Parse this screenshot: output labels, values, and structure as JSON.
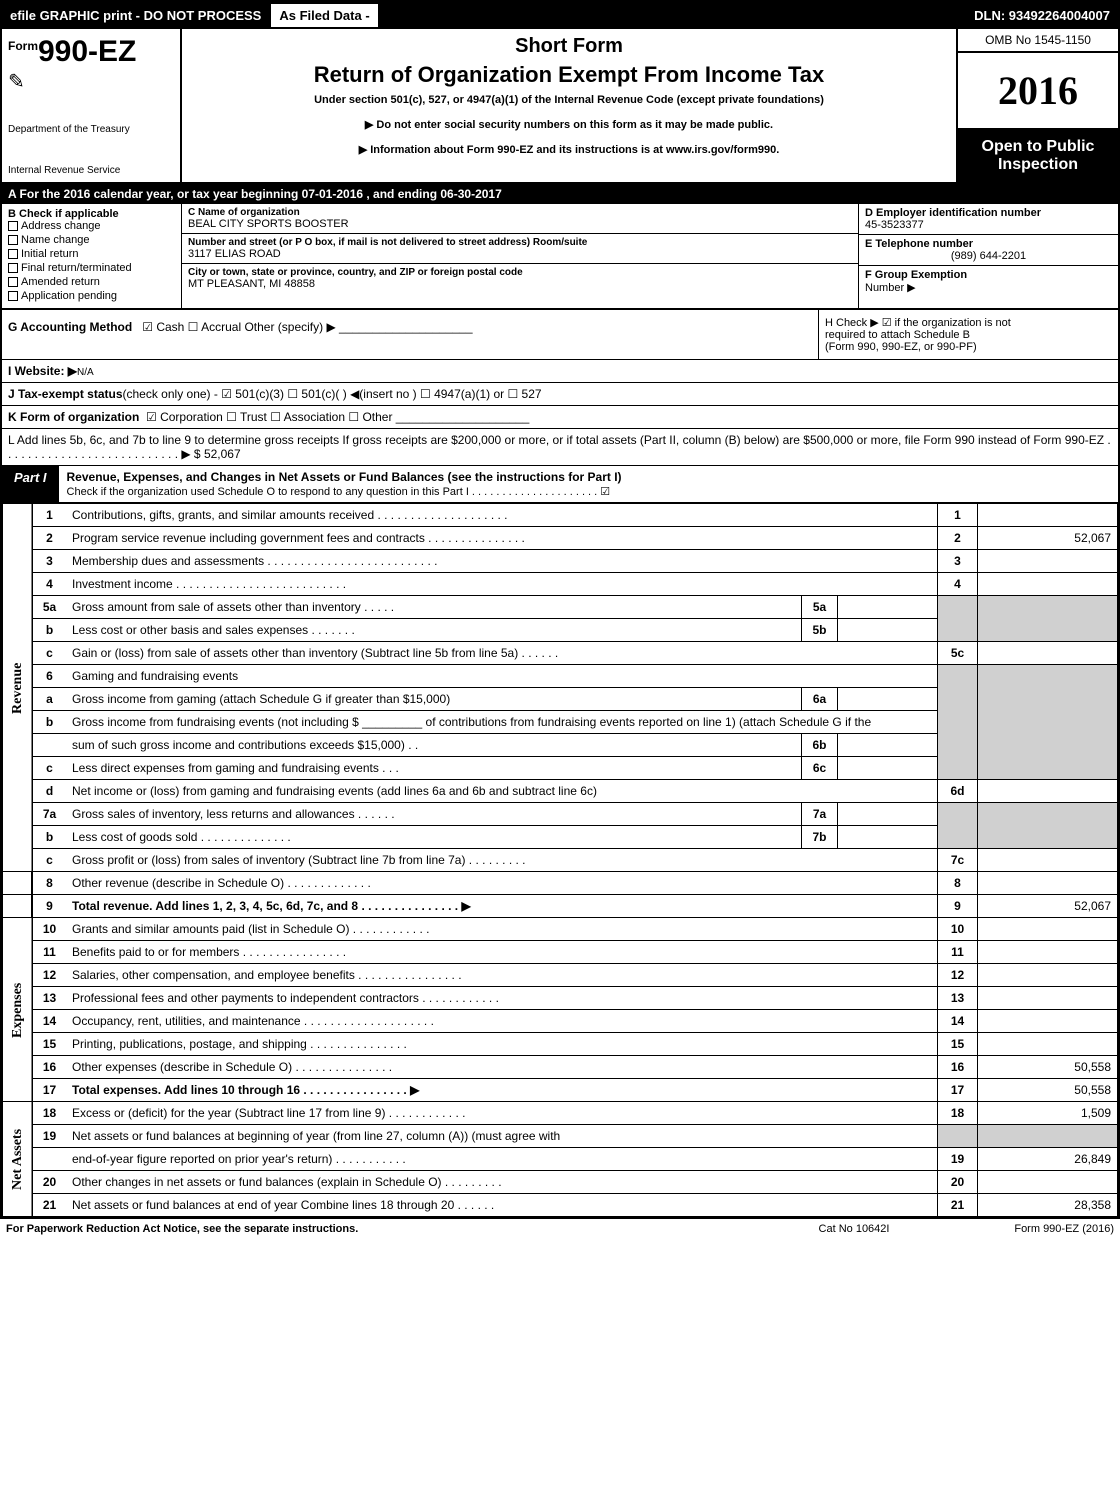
{
  "topbar": {
    "left": "efile GRAPHIC print - DO NOT PROCESS",
    "mid": "As Filed Data -",
    "right": "DLN: 93492264004007"
  },
  "header": {
    "form_prefix": "Form",
    "form_no": "990-EZ",
    "dept1": "Department of the Treasury",
    "dept2": "Internal Revenue Service",
    "short": "Short Form",
    "title": "Return of Organization Exempt From Income Tax",
    "under": "Under section 501(c), 527, or 4947(a)(1) of the Internal Revenue Code (except private foundations)",
    "arrow1": "▶ Do not enter social security numbers on this form as it may be made public.",
    "arrow2": "▶ Information about Form 990-EZ and its instructions is at www.irs.gov/form990.",
    "omb": "OMB No 1545-1150",
    "year": "2016",
    "open1": "Open to Public",
    "open2": "Inspection"
  },
  "row_a": "A  For the 2016 calendar year, or tax year beginning 07-01-2016               , and ending 06-30-2017",
  "b": {
    "label": "B Check if applicable",
    "items": [
      "Address change",
      "Name change",
      "Initial return",
      "Final return/terminated",
      "Amended return",
      "Application pending"
    ]
  },
  "c": {
    "name_lab": "C Name of organization",
    "name": "BEAL CITY SPORTS BOOSTER",
    "addr_lab": "Number and street (or P  O  box, if mail is not delivered to street address)  Room/suite",
    "addr": "3117 ELIAS ROAD",
    "city_lab": "City or town, state or province, country, and ZIP or foreign postal code",
    "city": "MT PLEASANT, MI  48858"
  },
  "d": {
    "lab": "D Employer identification number",
    "val": "45-3523377"
  },
  "e": {
    "lab": "E Telephone number",
    "val": "(989) 644-2201"
  },
  "f": {
    "lab": "F Group Exemption",
    "lab2": "Number  ▶",
    "val": ""
  },
  "g": {
    "lab": "G Accounting Method",
    "opts": "☑ Cash   ☐ Accrual   Other (specify) ▶"
  },
  "h": {
    "txt1": "H   Check ▶   ☑ if the organization is not",
    "txt2": "required to attach Schedule B",
    "txt3": "(Form 990, 990-EZ, or 990-PF)"
  },
  "i": {
    "lab": "I Website: ▶",
    "val": "N/A"
  },
  "j": {
    "lab": "J Tax-exempt status",
    "txt": "(check only one) - ☑ 501(c)(3) ☐ 501(c)( ) ◀(insert no ) ☐ 4947(a)(1) or ☐ 527"
  },
  "k": {
    "lab": "K Form of organization",
    "txt": "☑ Corporation   ☐ Trust   ☐ Association   ☐ Other"
  },
  "l": {
    "txt": "L Add lines 5b, 6c, and 7b to line 9 to determine gross receipts  If gross receipts are $200,000 or more, or if total assets (Part II, column (B) below) are $500,000 or more, file Form 990 instead of Form 990-EZ  .  .  .  .  .  .  .  .  .  .  .  .  .  .  .  .  .  .  .  .  .  .  .  .  .  .  .  ▶ $ 52,067"
  },
  "part1": {
    "tag": "Part I",
    "title": "Revenue, Expenses, and Changes in Net Assets or Fund Balances (see the instructions for Part I)",
    "sub": "Check if the organization used Schedule O to respond to any question in this Part I .  .  .  .  .  .  .  .  .  .  .  .  .  .  .  .  .  .  .  .  .  ☑"
  },
  "side": {
    "rev": "Revenue",
    "exp": "Expenses",
    "net": "Net Assets"
  },
  "lines": {
    "l1": {
      "n": "1",
      "d": "Contributions, gifts, grants, and similar amounts received .  .  .  .  .  .  .  .  .  .  .  .  .  .  .  .  .  .  .  .",
      "bn": "1",
      "bv": ""
    },
    "l2": {
      "n": "2",
      "d": "Program service revenue including government fees and contracts .  .  .  .  .  .  .  .  .  .  .  .  .  .  .",
      "bn": "2",
      "bv": "52,067"
    },
    "l3": {
      "n": "3",
      "d": "Membership dues and assessments .  .  .  .  .  .  .  .  .  .  .  .  .  .  .  .  .  .  .  .  .  .  .  .  .  .",
      "bn": "3",
      "bv": ""
    },
    "l4": {
      "n": "4",
      "d": "Investment income .  .  .  .  .  .  .  .  .  .  .  .  .  .  .  .  .  .  .  .  .  .  .  .  .  .",
      "bn": "4",
      "bv": ""
    },
    "l5a": {
      "n": "5a",
      "d": "Gross amount from sale of assets other than inventory .  .  .  .  .",
      "mn": "5a"
    },
    "l5b": {
      "n": "b",
      "d": "Less  cost or other basis and sales expenses .  .  .  .  .  .  .",
      "mn": "5b"
    },
    "l5c": {
      "n": "c",
      "d": "Gain or (loss) from sale of assets other than inventory (Subtract line 5b from line 5a) .  .  .  .  .  .",
      "bn": "5c",
      "bv": ""
    },
    "l6": {
      "n": "6",
      "d": "Gaming and fundraising events"
    },
    "l6a": {
      "n": "a",
      "d": "Gross income from gaming (attach Schedule G if greater than $15,000)",
      "mn": "6a"
    },
    "l6b1": {
      "n": "b",
      "d": "Gross income from fundraising events (not including $ _________ of contributions from fundraising events reported on line 1) (attach Schedule G if the"
    },
    "l6b2": {
      "d": "sum of such gross income and contributions exceeds $15,000)   .  .",
      "mn": "6b"
    },
    "l6c": {
      "n": "c",
      "d": "Less  direct expenses from gaming and fundraising events    .  .  .",
      "mn": "6c"
    },
    "l6d": {
      "n": "d",
      "d": "Net income or (loss) from gaming and fundraising events (add lines 6a and 6b and subtract line 6c)",
      "bn": "6d",
      "bv": ""
    },
    "l7a": {
      "n": "7a",
      "d": "Gross sales of inventory, less returns and allowances .  .  .  .  .  .",
      "mn": "7a"
    },
    "l7b": {
      "n": "b",
      "d": "Less  cost of goods sold         .  .  .  .  .  .  .  .  .  .  .  .  .  .",
      "mn": "7b"
    },
    "l7c": {
      "n": "c",
      "d": "Gross profit or (loss) from sales of inventory (Subtract line 7b from line 7a) .  .  .  .  .  .  .  .  .",
      "bn": "7c",
      "bv": ""
    },
    "l8": {
      "n": "8",
      "d": "Other revenue (describe in Schedule O)                    .  .  .  .  .  .  .  .  .  .  .  .  .",
      "bn": "8",
      "bv": ""
    },
    "l9": {
      "n": "9",
      "d": "Total revenue. Add lines 1, 2, 3, 4, 5c, 6d, 7c, and 8 .  .  .  .  .  .  .  .  .  .  .  .  .  .  .  ▶",
      "bn": "9",
      "bv": "52,067"
    },
    "l10": {
      "n": "10",
      "d": "Grants and similar amounts paid (list in Schedule O)         .  .  .  .  .  .  .  .  .  .  .  .",
      "bn": "10",
      "bv": ""
    },
    "l11": {
      "n": "11",
      "d": "Benefits paid to or for members                 .  .  .  .  .  .  .  .  .  .  .  .  .  .  .  .",
      "bn": "11",
      "bv": ""
    },
    "l12": {
      "n": "12",
      "d": "Salaries, other compensation, and employee benefits .  .  .  .  .  .  .  .  .  .  .  .  .  .  .  .",
      "bn": "12",
      "bv": ""
    },
    "l13": {
      "n": "13",
      "d": "Professional fees and other payments to independent contractors  .  .  .  .  .  .  .  .  .  .  .  .",
      "bn": "13",
      "bv": ""
    },
    "l14": {
      "n": "14",
      "d": "Occupancy, rent, utilities, and maintenance .  .  .  .  .  .  .  .  .  .  .  .  .  .  .  .  .  .  .  .",
      "bn": "14",
      "bv": ""
    },
    "l15": {
      "n": "15",
      "d": "Printing, publications, postage, and shipping          .  .  .  .  .  .  .  .  .  .  .  .  .  .  .",
      "bn": "15",
      "bv": ""
    },
    "l16": {
      "n": "16",
      "d": "Other expenses (describe in Schedule O)             .  .  .  .  .  .  .  .  .  .  .  .  .  .  .",
      "bn": "16",
      "bv": "50,558"
    },
    "l17": {
      "n": "17",
      "d": "Total expenses. Add lines 10 through 16       .  .  .  .  .  .  .  .  .  .  .  .  .  .  .  .  ▶",
      "bn": "17",
      "bv": "50,558"
    },
    "l18": {
      "n": "18",
      "d": "Excess or (deficit) for the year (Subtract line 17 from line 9)      .  .  .  .  .  .  .  .  .  .  .  .",
      "bn": "18",
      "bv": "1,509"
    },
    "l19a": {
      "n": "19",
      "d": "Net assets or fund balances at beginning of year (from line 27, column (A)) (must agree with"
    },
    "l19b": {
      "d": "end-of-year figure reported on prior year's return)            .  .  .  .  .  .  .  .  .  .  .",
      "bn": "19",
      "bv": "26,849"
    },
    "l20": {
      "n": "20",
      "d": "Other changes in net assets or fund balances (explain in Schedule O)    .  .  .  .  .  .  .  .  .",
      "bn": "20",
      "bv": ""
    },
    "l21": {
      "n": "21",
      "d": "Net assets or fund balances at end of year  Combine lines 18 through 20       .  .  .  .  .  .",
      "bn": "21",
      "bv": "28,358"
    }
  },
  "footer": {
    "l": "For Paperwork Reduction Act Notice, see the separate instructions.",
    "m": "Cat  No  10642I",
    "r": "Form 990-EZ (2016)"
  }
}
